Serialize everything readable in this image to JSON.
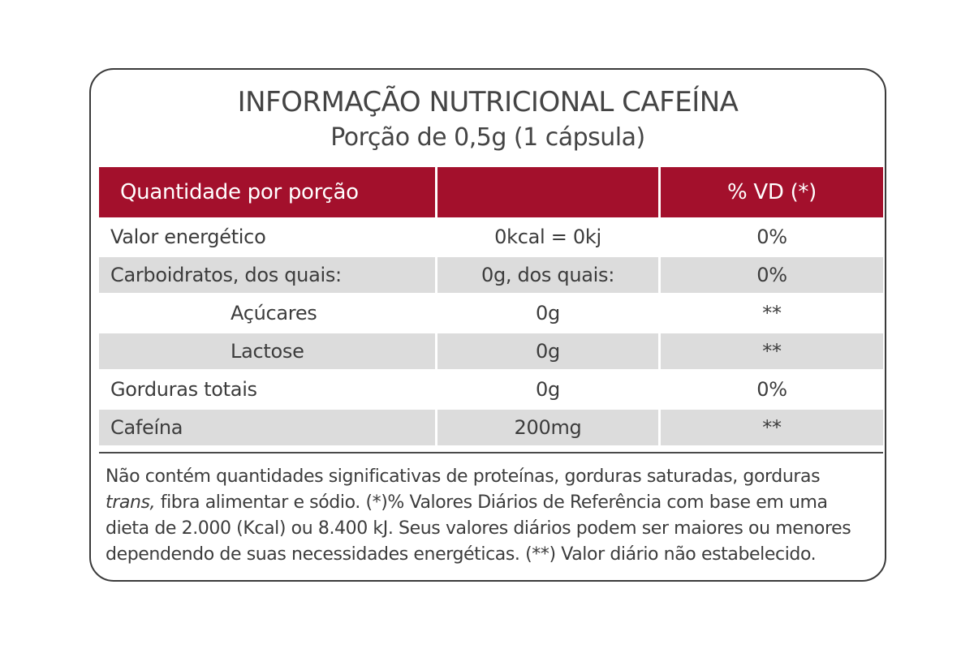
{
  "label": {
    "title": "INFORMAÇÃO NUTRICIONAL CAFEÍNA",
    "subtitle": "Porção de 0,5g (1 cápsula)"
  },
  "table": {
    "headers": [
      "Quantidade por porção",
      "",
      "% VD (*)"
    ],
    "rows": [
      {
        "name": "Valor energético",
        "amount": "0kcal = 0kj",
        "dv": "0%"
      },
      {
        "name": "Carboidratos, dos quais:",
        "amount": "0g, dos quais:",
        "dv": "0%"
      },
      {
        "name": "Açúcares",
        "amount": "0g",
        "dv": "**"
      },
      {
        "name": "Lactose",
        "amount": "0g",
        "dv": "**"
      },
      {
        "name": "Gorduras totais",
        "amount": "0g",
        "dv": "0%"
      },
      {
        "name": "Cafeína",
        "amount": "200mg",
        "dv": "**"
      }
    ]
  },
  "footnote": {
    "line1": "Não contém quantidades significativas de proteínas, gorduras saturadas, gorduras",
    "line2_italic": "trans,",
    "line2_rest": " fibra alimentar e sódio. (*)% Valores Diários de Referência com base em uma",
    "line3": "dieta de 2.000 (Kcal) ou 8.400 kJ. Seus valores diários podem ser maiores ou menores",
    "line4": "dependendo de suas necessidades energéticas. (**) Valor diário não estabelecido."
  },
  "colors": {
    "header_bg": "#a3102c",
    "shaded_row_bg": "#dcdcdc",
    "border": "#3a3a3a"
  }
}
